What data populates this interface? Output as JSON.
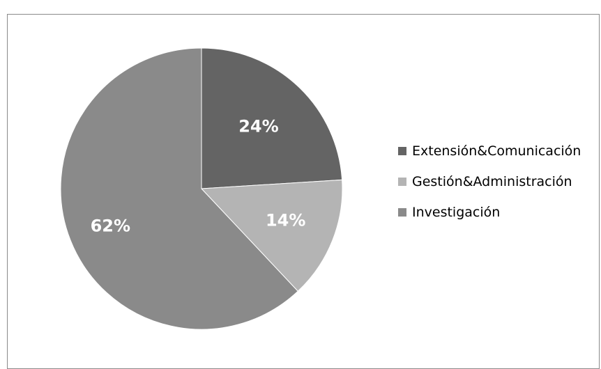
{
  "chart_data": {
    "type": "pie",
    "title": "",
    "categories": [
      "Extensión&Comunicación",
      "Gestión&Administración",
      "Investigación"
    ],
    "values": [
      24,
      14,
      62
    ],
    "labels": [
      "24%",
      "14%",
      "62%"
    ],
    "colors": [
      "#646464",
      "#b4b4b4",
      "#8a8a8a"
    ],
    "legend_position": "right"
  }
}
